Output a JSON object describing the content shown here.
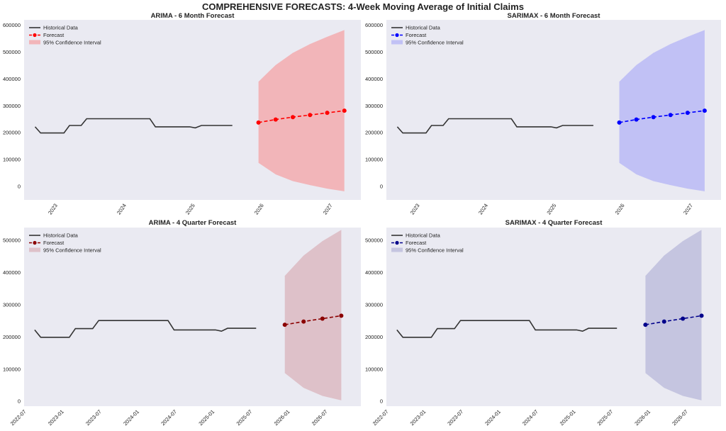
{
  "figure_title": "COMPREHENSIVE FORECASTS: 4-Week Moving Average of Initial Claims",
  "legend_labels": {
    "historical": "Historical Data",
    "forecast": "Forecast",
    "ci": "95% Confidence Interval"
  },
  "chart_data": [
    {
      "id": "arima-6m",
      "type": "line",
      "title": "ARIMA - 6 Month Forecast",
      "colors": {
        "historical": "#333333",
        "forecast": "#ff0000",
        "ci": "#f4a3a6"
      },
      "xlim": [
        2022.55,
        2027.45
      ],
      "ylim": [
        -50000,
        620000
      ],
      "xticks": [
        {
          "value": 2023,
          "label": "2023"
        },
        {
          "value": 2024,
          "label": "2024"
        },
        {
          "value": 2025,
          "label": "2025"
        },
        {
          "value": 2026,
          "label": "2026"
        },
        {
          "value": 2027,
          "label": "2027"
        }
      ],
      "yticks": [
        0,
        100000,
        200000,
        300000,
        400000,
        500000,
        600000
      ],
      "historical": {
        "x": [
          2022.71,
          2022.79,
          2022.88,
          2023.13,
          2023.21,
          2023.38,
          2023.46,
          2023.63,
          2023.88,
          2024.21,
          2024.38,
          2024.46,
          2024.71,
          2024.96,
          2025.04,
          2025.13,
          2025.3,
          2025.58
        ],
        "y": [
          222000,
          199000,
          199000,
          199000,
          227000,
          227000,
          252000,
          252000,
          252000,
          252000,
          252000,
          222000,
          222000,
          222000,
          218000,
          227000,
          227000,
          227000
        ]
      },
      "forecast": {
        "x": [
          2025.96,
          2026.21,
          2026.46,
          2026.71,
          2026.96,
          2027.21
        ],
        "y": [
          238000,
          249000,
          258000,
          266000,
          274000,
          282000
        ]
      },
      "ci": {
        "x": [
          2025.96,
          2026.21,
          2026.46,
          2026.71,
          2026.96,
          2027.21
        ],
        "lower": [
          88000,
          45000,
          20000,
          5000,
          -8000,
          -18000
        ],
        "upper": [
          390000,
          452000,
          497000,
          530000,
          557000,
          582000
        ]
      }
    },
    {
      "id": "sarimax-6m",
      "type": "line",
      "title": "SARIMAX - 6 Month Forecast",
      "colors": {
        "historical": "#333333",
        "forecast": "#0000ff",
        "ci": "#b3b3f6"
      },
      "xlim": [
        2022.55,
        2027.45
      ],
      "ylim": [
        -50000,
        620000
      ],
      "xticks": [
        {
          "value": 2023,
          "label": "2023"
        },
        {
          "value": 2024,
          "label": "2024"
        },
        {
          "value": 2025,
          "label": "2025"
        },
        {
          "value": 2026,
          "label": "2026"
        },
        {
          "value": 2027,
          "label": "2027"
        }
      ],
      "yticks": [
        0,
        100000,
        200000,
        300000,
        400000,
        500000,
        600000
      ],
      "historical": {
        "x": [
          2022.71,
          2022.79,
          2022.88,
          2023.13,
          2023.21,
          2023.38,
          2023.46,
          2023.63,
          2023.88,
          2024.21,
          2024.38,
          2024.46,
          2024.71,
          2024.96,
          2025.04,
          2025.13,
          2025.3,
          2025.58
        ],
        "y": [
          222000,
          199000,
          199000,
          199000,
          227000,
          227000,
          252000,
          252000,
          252000,
          252000,
          252000,
          222000,
          222000,
          222000,
          218000,
          227000,
          227000,
          227000
        ]
      },
      "forecast": {
        "x": [
          2025.96,
          2026.21,
          2026.46,
          2026.71,
          2026.96,
          2027.21
        ],
        "y": [
          238000,
          249000,
          258000,
          266000,
          274000,
          282000
        ]
      },
      "ci": {
        "x": [
          2025.96,
          2026.21,
          2026.46,
          2026.71,
          2026.96,
          2027.21
        ],
        "lower": [
          88000,
          45000,
          20000,
          5000,
          -8000,
          -18000
        ],
        "upper": [
          390000,
          452000,
          497000,
          530000,
          557000,
          582000
        ]
      }
    },
    {
      "id": "arima-4q",
      "type": "line",
      "title": "ARIMA - 4 Quarter Forecast",
      "colors": {
        "historical": "#333333",
        "forecast": "#8b0000",
        "ci": "#d9b3bb"
      },
      "xlim": [
        2022.5,
        2026.97
      ],
      "ylim": [
        -15000,
        540000
      ],
      "xticks": [
        {
          "value": 2022.5,
          "label": "2022-07"
        },
        {
          "value": 2023.0,
          "label": "2023-01"
        },
        {
          "value": 2023.5,
          "label": "2023-07"
        },
        {
          "value": 2024.0,
          "label": "2024-01"
        },
        {
          "value": 2024.5,
          "label": "2024-07"
        },
        {
          "value": 2025.0,
          "label": "2025-01"
        },
        {
          "value": 2025.5,
          "label": "2025-07"
        },
        {
          "value": 2026.0,
          "label": "2026-01"
        },
        {
          "value": 2026.5,
          "label": "2026-07"
        }
      ],
      "yticks": [
        0,
        100000,
        200000,
        300000,
        400000,
        500000
      ],
      "historical": {
        "x": [
          2022.64,
          2022.72,
          2022.8,
          2023.1,
          2023.18,
          2023.41,
          2023.49,
          2023.73,
          2024.08,
          2024.26,
          2024.41,
          2024.49,
          2024.81,
          2025.04,
          2025.12,
          2025.2,
          2025.4,
          2025.58
        ],
        "y": [
          222000,
          199000,
          199000,
          199000,
          226000,
          226000,
          251000,
          251000,
          251000,
          251000,
          251000,
          222000,
          222000,
          222000,
          218000,
          227000,
          227000,
          227000
        ]
      },
      "forecast": {
        "x": [
          2025.96,
          2026.21,
          2026.46,
          2026.71
        ],
        "y": [
          238000,
          248000,
          257000,
          266000
        ]
      },
      "ci": {
        "x": [
          2025.96,
          2026.21,
          2026.46,
          2026.71
        ],
        "lower": [
          88000,
          42000,
          17000,
          3000
        ],
        "upper": [
          390000,
          453000,
          498000,
          533000
        ]
      }
    },
    {
      "id": "sarimax-4q",
      "type": "line",
      "title": "SARIMAX - 4 Quarter Forecast",
      "colors": {
        "historical": "#333333",
        "forecast": "#00008b",
        "ci": "#b8b8da"
      },
      "xlim": [
        2022.5,
        2026.97
      ],
      "ylim": [
        -15000,
        540000
      ],
      "xticks": [
        {
          "value": 2022.5,
          "label": "2022-07"
        },
        {
          "value": 2023.0,
          "label": "2023-01"
        },
        {
          "value": 2023.5,
          "label": "2023-07"
        },
        {
          "value": 2024.0,
          "label": "2024-01"
        },
        {
          "value": 2024.5,
          "label": "2024-07"
        },
        {
          "value": 2025.0,
          "label": "2025-01"
        },
        {
          "value": 2025.5,
          "label": "2025-07"
        },
        {
          "value": 2026.0,
          "label": "2026-01"
        },
        {
          "value": 2026.5,
          "label": "2026-07"
        }
      ],
      "yticks": [
        0,
        100000,
        200000,
        300000,
        400000,
        500000
      ],
      "historical": {
        "x": [
          2022.64,
          2022.72,
          2022.8,
          2023.1,
          2023.18,
          2023.41,
          2023.49,
          2023.73,
          2024.08,
          2024.26,
          2024.41,
          2024.49,
          2024.81,
          2025.04,
          2025.12,
          2025.2,
          2025.4,
          2025.58
        ],
        "y": [
          222000,
          199000,
          199000,
          199000,
          226000,
          226000,
          251000,
          251000,
          251000,
          251000,
          251000,
          222000,
          222000,
          222000,
          218000,
          227000,
          227000,
          227000
        ]
      },
      "forecast": {
        "x": [
          2025.96,
          2026.21,
          2026.46,
          2026.71
        ],
        "y": [
          238000,
          248000,
          257000,
          266000
        ]
      },
      "ci": {
        "x": [
          2025.96,
          2026.21,
          2026.46,
          2026.71
        ],
        "lower": [
          88000,
          42000,
          17000,
          3000
        ],
        "upper": [
          390000,
          453000,
          498000,
          533000
        ]
      }
    }
  ]
}
